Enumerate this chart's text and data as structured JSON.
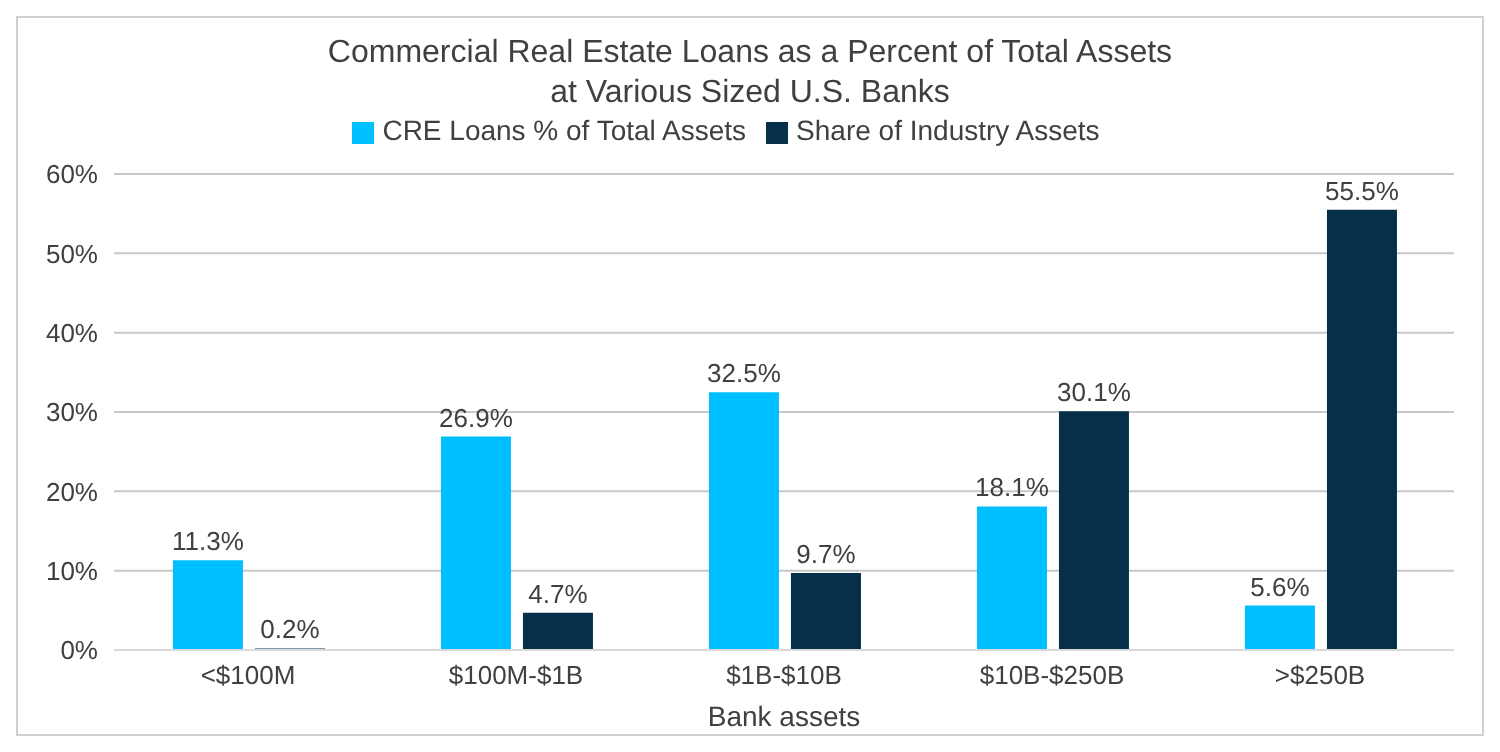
{
  "chart_data": {
    "type": "bar",
    "title": "Commercial Real Estate Loans as a Percent of Total Assets at Various Sized U.S. Banks",
    "xlabel": "Bank assets",
    "categories": [
      "<$100M",
      "$100M-$1B",
      "$1B-$10B",
      "$10B-$250B",
      ">$250B"
    ],
    "series": [
      {
        "name": "CRE Loans % of Total Assets",
        "color": "#00bfff",
        "values": [
          11.3,
          26.9,
          32.5,
          18.1,
          5.6
        ],
        "value_labels": [
          "11.3%",
          "26.9%",
          "32.5%",
          "18.1%",
          "5.6%"
        ]
      },
      {
        "name": "Share of Industry Assets",
        "color": "#06304a",
        "values": [
          0.2,
          4.7,
          9.7,
          30.1,
          55.5
        ],
        "value_labels": [
          "0.2%",
          "4.7%",
          "9.7%",
          "30.1%",
          "55.5%"
        ]
      }
    ],
    "ylim": [
      0,
      60
    ],
    "yticks": [
      {
        "value": 0,
        "label": "0%"
      },
      {
        "value": 10,
        "label": "10%"
      },
      {
        "value": 20,
        "label": "20%"
      },
      {
        "value": 30,
        "label": "30%"
      },
      {
        "value": 40,
        "label": "40%"
      },
      {
        "value": 50,
        "label": "50%"
      },
      {
        "value": 60,
        "label": "60%"
      }
    ],
    "grid": "y",
    "legend": "top"
  }
}
